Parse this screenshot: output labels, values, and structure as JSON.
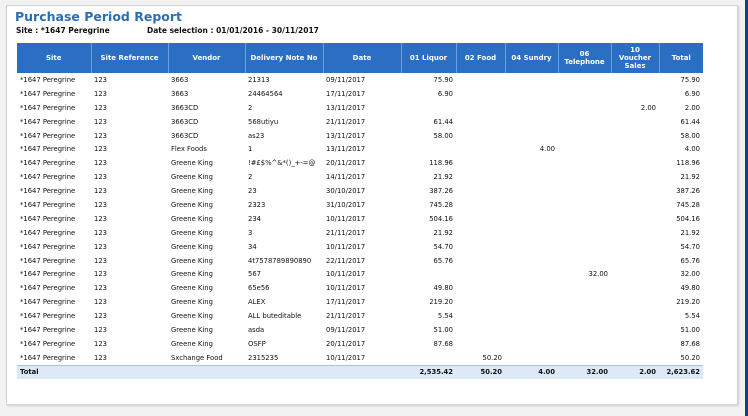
{
  "report": {
    "title": "Purchase Period Report",
    "site_label": "Site : *1647 Peregrine",
    "date_selection": "Date selection : 01/01/2016 - 30/11/2017"
  },
  "table": {
    "columns": [
      "Site",
      "Site Reference",
      "Vendor",
      "Delivery Note No",
      "Date",
      "01 Liquor",
      "02 Food",
      "04 Sundry",
      "06 Telephone",
      "10 Voucher Sales",
      "Total"
    ],
    "rows": [
      [
        "*1647 Peregrine",
        "123",
        "3663",
        "21313",
        "09/11/2017",
        "75.90",
        "",
        "",
        "",
        "",
        "75.90"
      ],
      [
        "*1647 Peregrine",
        "123",
        "3663",
        "24464564",
        "17/11/2017",
        "6.90",
        "",
        "",
        "",
        "",
        "6.90"
      ],
      [
        "*1647 Peregrine",
        "123",
        "3663CD",
        "2",
        "13/11/2017",
        "",
        "",
        "",
        "",
        "2.00",
        "2.00"
      ],
      [
        "*1647 Peregrine",
        "123",
        "3663CD",
        "568utiyu",
        "21/11/2017",
        "61.44",
        "",
        "",
        "",
        "",
        "61.44"
      ],
      [
        "*1647 Peregrine",
        "123",
        "3663CD",
        "as23",
        "13/11/2017",
        "58.00",
        "",
        "",
        "",
        "",
        "58.00"
      ],
      [
        "*1647 Peregrine",
        "123",
        "Flex Foods",
        "1",
        "13/11/2017",
        "",
        "",
        "4.00",
        "",
        "",
        "4.00"
      ],
      [
        "*1647 Peregrine",
        "123",
        "Greene King",
        "!#£$%^&*()_+-=@",
        "20/11/2017",
        "118.96",
        "",
        "",
        "",
        "",
        "118.96"
      ],
      [
        "*1647 Peregrine",
        "123",
        "Greene King",
        "2",
        "14/11/2017",
        "21.92",
        "",
        "",
        "",
        "",
        "21.92"
      ],
      [
        "*1647 Peregrine",
        "123",
        "Greene King",
        "23",
        "30/10/2017",
        "387.26",
        "",
        "",
        "",
        "",
        "387.26"
      ],
      [
        "*1647 Peregrine",
        "123",
        "Greene King",
        "2323",
        "31/10/2017",
        "745.28",
        "",
        "",
        "",
        "",
        "745.28"
      ],
      [
        "*1647 Peregrine",
        "123",
        "Greene King",
        "234",
        "10/11/2017",
        "504.16",
        "",
        "",
        "",
        "",
        "504.16"
      ],
      [
        "*1647 Peregrine",
        "123",
        "Greene King",
        "3",
        "21/11/2017",
        "21.92",
        "",
        "",
        "",
        "",
        "21.92"
      ],
      [
        "*1647 Peregrine",
        "123",
        "Greene King",
        "34",
        "10/11/2017",
        "54.70",
        "",
        "",
        "",
        "",
        "54.70"
      ],
      [
        "*1647 Peregrine",
        "123",
        "Greene King",
        "4t7578789890890",
        "22/11/2017",
        "65.76",
        "",
        "",
        "",
        "",
        "65.76"
      ],
      [
        "*1647 Peregrine",
        "123",
        "Greene King",
        "567",
        "10/11/2017",
        "",
        "",
        "",
        "32.00",
        "",
        "32.00"
      ],
      [
        "*1647 Peregrine",
        "123",
        "Greene King",
        "65e56",
        "10/11/2017",
        "49.80",
        "",
        "",
        "",
        "",
        "49.80"
      ],
      [
        "*1647 Peregrine",
        "123",
        "Greene King",
        "ALEX",
        "17/11/2017",
        "219.20",
        "",
        "",
        "",
        "",
        "219.20"
      ],
      [
        "*1647 Peregrine",
        "123",
        "Greene King",
        "ALL buteditable",
        "21/11/2017",
        "5.54",
        "",
        "",
        "",
        "",
        "5.54"
      ],
      [
        "*1647 Peregrine",
        "123",
        "Greene King",
        "asda",
        "09/11/2017",
        "51.00",
        "",
        "",
        "",
        "",
        "51.00"
      ],
      [
        "*1647 Peregrine",
        "123",
        "Greene King",
        "OSFP",
        "20/11/2017",
        "87.68",
        "",
        "",
        "",
        "",
        "87.68"
      ],
      [
        "*1647 Peregrine",
        "123",
        "Sxchange Food",
        "2315235",
        "10/11/2017",
        "",
        "50.20",
        "",
        "",
        "",
        "50.20"
      ]
    ],
    "total_row": [
      "Total",
      "",
      "",
      "",
      "",
      "2,535.42",
      "50.20",
      "4.00",
      "32.00",
      "2.00",
      "2,623.62"
    ]
  },
  "colors": {
    "header_bg": "#2b6fc4",
    "title": "#2a6fb3",
    "total_bg": "#dde9f7",
    "right_bar": "#1a3f74"
  }
}
